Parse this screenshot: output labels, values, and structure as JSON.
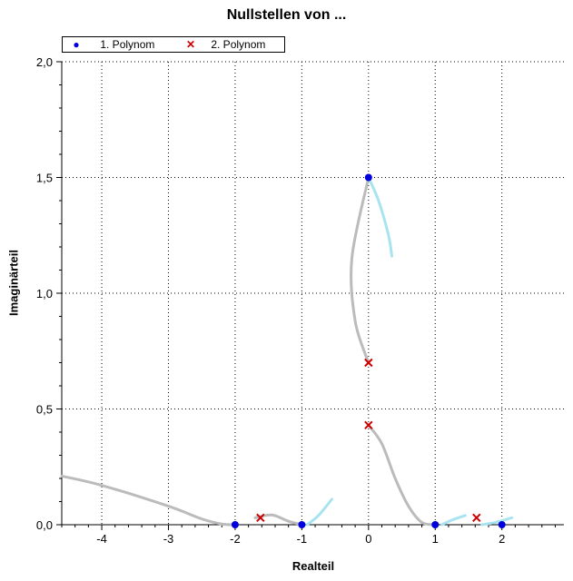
{
  "chart_data": {
    "type": "scatter",
    "title": "Nullstellen von ...",
    "xlabel": "Realteil",
    "ylabel": "Imaginärteil",
    "xlim": [
      -4.6,
      2.93
    ],
    "ylim": [
      0,
      2.0
    ],
    "grid": true,
    "legend_position": "top-left",
    "xticks": [
      -4,
      -3,
      -2,
      -1,
      0,
      1,
      2
    ],
    "xtick_labels": [
      "-4",
      "-3",
      "-2",
      "-1",
      "0",
      "1",
      "2"
    ],
    "yticks": [
      0,
      0.5,
      1.0,
      1.5,
      2.0
    ],
    "ytick_labels": [
      "0,0",
      "0,5",
      "1,0",
      "1,5",
      "2,0"
    ],
    "series": [
      {
        "name": "1. Polynom",
        "marker": "circle",
        "color": "#0000dd",
        "points": [
          [
            0,
            1.5
          ],
          [
            -2,
            0
          ],
          [
            -1,
            0
          ],
          [
            1,
            0
          ],
          [
            2,
            0
          ]
        ]
      },
      {
        "name": "2. Polynom",
        "marker": "x",
        "color": "#cc0000",
        "points": [
          [
            0,
            0.7
          ],
          [
            0,
            0.43
          ],
          [
            -1.62,
            0.03
          ],
          [
            1.62,
            0.03
          ]
        ]
      }
    ],
    "paths": [
      {
        "color": "#bbbbbb",
        "points": [
          [
            -4.6,
            0.21
          ],
          [
            -4.0,
            0.17
          ],
          [
            -3.0,
            0.08
          ],
          [
            -2.5,
            0.025
          ],
          [
            -2.2,
            0.003
          ],
          [
            -2.0,
            0.0
          ]
        ]
      },
      {
        "color": "#bbbbbb",
        "points": [
          [
            -1.7,
            0.03
          ],
          [
            -1.45,
            0.042
          ],
          [
            -1.2,
            0.015
          ],
          [
            -1.0,
            0.0
          ]
        ]
      },
      {
        "color": "#a8e4f0",
        "points": [
          [
            -0.92,
            0.0
          ],
          [
            -0.75,
            0.04
          ],
          [
            -0.55,
            0.11
          ]
        ]
      },
      {
        "color": "#bbbbbb",
        "points": [
          [
            0,
            1.5
          ],
          [
            -0.25,
            1.15
          ],
          [
            -0.2,
            0.88
          ],
          [
            0,
            0.7
          ]
        ]
      },
      {
        "color": "#a8e4f0",
        "points": [
          [
            0,
            1.5
          ],
          [
            0.15,
            1.4
          ],
          [
            0.3,
            1.25
          ],
          [
            0.35,
            1.16
          ]
        ]
      },
      {
        "color": "#bbbbbb",
        "points": [
          [
            0,
            0.43
          ],
          [
            0.2,
            0.35
          ],
          [
            0.4,
            0.2
          ],
          [
            0.6,
            0.08
          ],
          [
            0.8,
            0.01
          ],
          [
            1.0,
            0.0
          ]
        ]
      },
      {
        "color": "#a8e4f0",
        "points": [
          [
            1.1,
            0.0
          ],
          [
            1.25,
            0.02
          ],
          [
            1.45,
            0.04
          ]
        ]
      },
      {
        "color": "#a8e4f0",
        "points": [
          [
            1.7,
            0.0
          ],
          [
            1.9,
            0.01
          ],
          [
            2.15,
            0.03
          ]
        ]
      }
    ]
  }
}
